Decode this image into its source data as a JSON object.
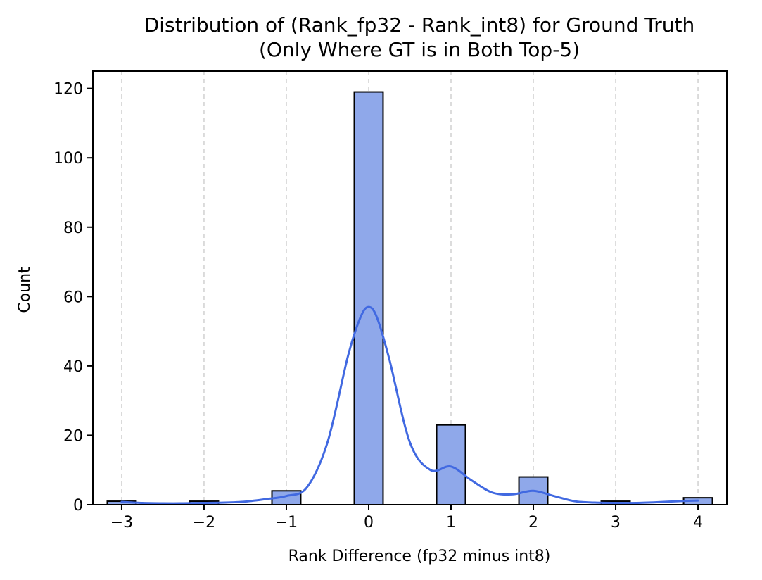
{
  "chart_data": {
    "type": "bar",
    "title_line1": "Distribution of (Rank_fp32 - Rank_int8) for Ground Truth",
    "title_line2": "(Only Where GT is in Both Top-5)",
    "xlabel": "Rank Difference (fp32 minus int8)",
    "ylabel": "Count",
    "xlim": [
      -3.35,
      4.35
    ],
    "ylim": [
      0,
      125
    ],
    "xticks": [
      -3,
      -2,
      -1,
      0,
      1,
      2,
      3,
      4
    ],
    "xtick_labels": [
      "−3",
      "−2",
      "−1",
      "0",
      "1",
      "2",
      "3",
      "4"
    ],
    "yticks": [
      0,
      20,
      40,
      60,
      80,
      100,
      120
    ],
    "ytick_labels": [
      "0",
      "20",
      "40",
      "60",
      "80",
      "100",
      "120"
    ],
    "bin_width": 0.35,
    "grid": "x-dashed",
    "bar_color": "#8fa8ea",
    "bar_edge_color": "#000000",
    "kde_color": "#4169e1",
    "bars": [
      {
        "x": -3,
        "count": 1
      },
      {
        "x": -2,
        "count": 1
      },
      {
        "x": -1,
        "count": 4
      },
      {
        "x": 0,
        "count": 119
      },
      {
        "x": 1,
        "count": 23
      },
      {
        "x": 2,
        "count": 8
      },
      {
        "x": 3,
        "count": 1
      },
      {
        "x": 4,
        "count": 2
      }
    ],
    "kde": {
      "x": [
        -3,
        -2.75,
        -2.5,
        -2.25,
        -2,
        -1.75,
        -1.5,
        -1.25,
        -1,
        -0.75,
        -0.5,
        -0.25,
        -0.1,
        0,
        0.1,
        0.25,
        0.5,
        0.75,
        1,
        1.25,
        1.5,
        1.75,
        2,
        2.25,
        2.5,
        2.75,
        3,
        3.25,
        3.5,
        3.75,
        4
      ],
      "y": [
        0.8,
        0.5,
        0.4,
        0.4,
        0.5,
        0.6,
        0.9,
        1.6,
        2.5,
        5,
        18,
        43,
        54,
        57,
        54,
        42,
        18,
        10,
        11,
        7,
        3.5,
        3,
        4,
        2.5,
        1,
        0.6,
        0.5,
        0.5,
        0.7,
        1,
        1.2
      ]
    }
  }
}
